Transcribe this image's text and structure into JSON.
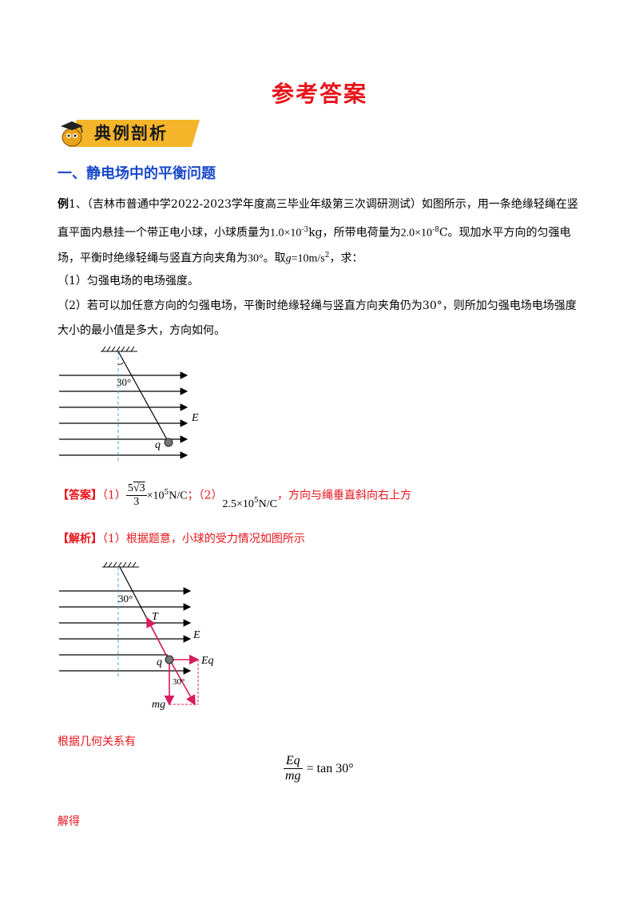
{
  "page": {
    "title": "参考答案",
    "banner_label": "典例剖析",
    "section_title": "一、静电场中的平衡问题"
  },
  "problem": {
    "label": "例",
    "line1": "1、（吉林市普通中学2022-2023学年度高三毕业年级第三次调研测试）如图所示，用一条绝缘轻绳在竖",
    "line2_a": "直平面内悬挂一个带正电小球，小球质量为",
    "mass_value": "1.0×10",
    "mass_exp": "-3",
    "mass_unit": "kg，所带电荷量为",
    "charge_value": "2.0×10",
    "charge_exp": "-8",
    "charge_unit": "C。现加水平方向的匀强电",
    "line3_a": "场，平衡时绝缘轻绳与竖直方向夹角为",
    "angle": "30°",
    "line3_b": "。取",
    "g_var": "g",
    "g_value": "=10m/s",
    "g_exp": "2",
    "line3_c": "，求：",
    "q1": "（1）匀强电场的电场强度。",
    "q2_line1": "（2）若可以加任意方向的匀强电场，平衡时绝缘轻绳与竖直方向夹角仍为30°，则所加匀强电场电场强度",
    "q2_line2": "大小的最小值是多大，方向如何。"
  },
  "figure1": {
    "angle_label": "30°",
    "field_label": "E",
    "charge_label": "q"
  },
  "answer": {
    "label": "【答案】",
    "part1": "（1）",
    "num_coef": "5",
    "num_root": "3",
    "den": "3",
    "times1": "×10",
    "exp1": "5",
    "unit1": "N/C",
    "sep": "；（2）",
    "value2": "2.5×10",
    "exp2": "5",
    "unit2": "N/C",
    "direction": "，方向与绳垂直斜向右上方"
  },
  "analysis": {
    "label": "【解析】",
    "text": "（1）根据题意，小球的受力情况如图所示"
  },
  "figure2": {
    "angle_label": "30°",
    "tension_label": "T",
    "field_label": "E",
    "charge_label": "q",
    "force_label": "Eq",
    "angle2_label": "30°",
    "gravity_label": "mg"
  },
  "geometry": {
    "intro": "根据几何关系有",
    "eq_num": "Eq",
    "eq_den": "mg",
    "eq_rhs": "= tan 30°",
    "result_label": "解得"
  },
  "colors": {
    "title_red": "#e8141b",
    "section_blue": "#1a49c9",
    "force_magenta": "#d81b60",
    "dashed_blue": "#4aa3d8"
  }
}
